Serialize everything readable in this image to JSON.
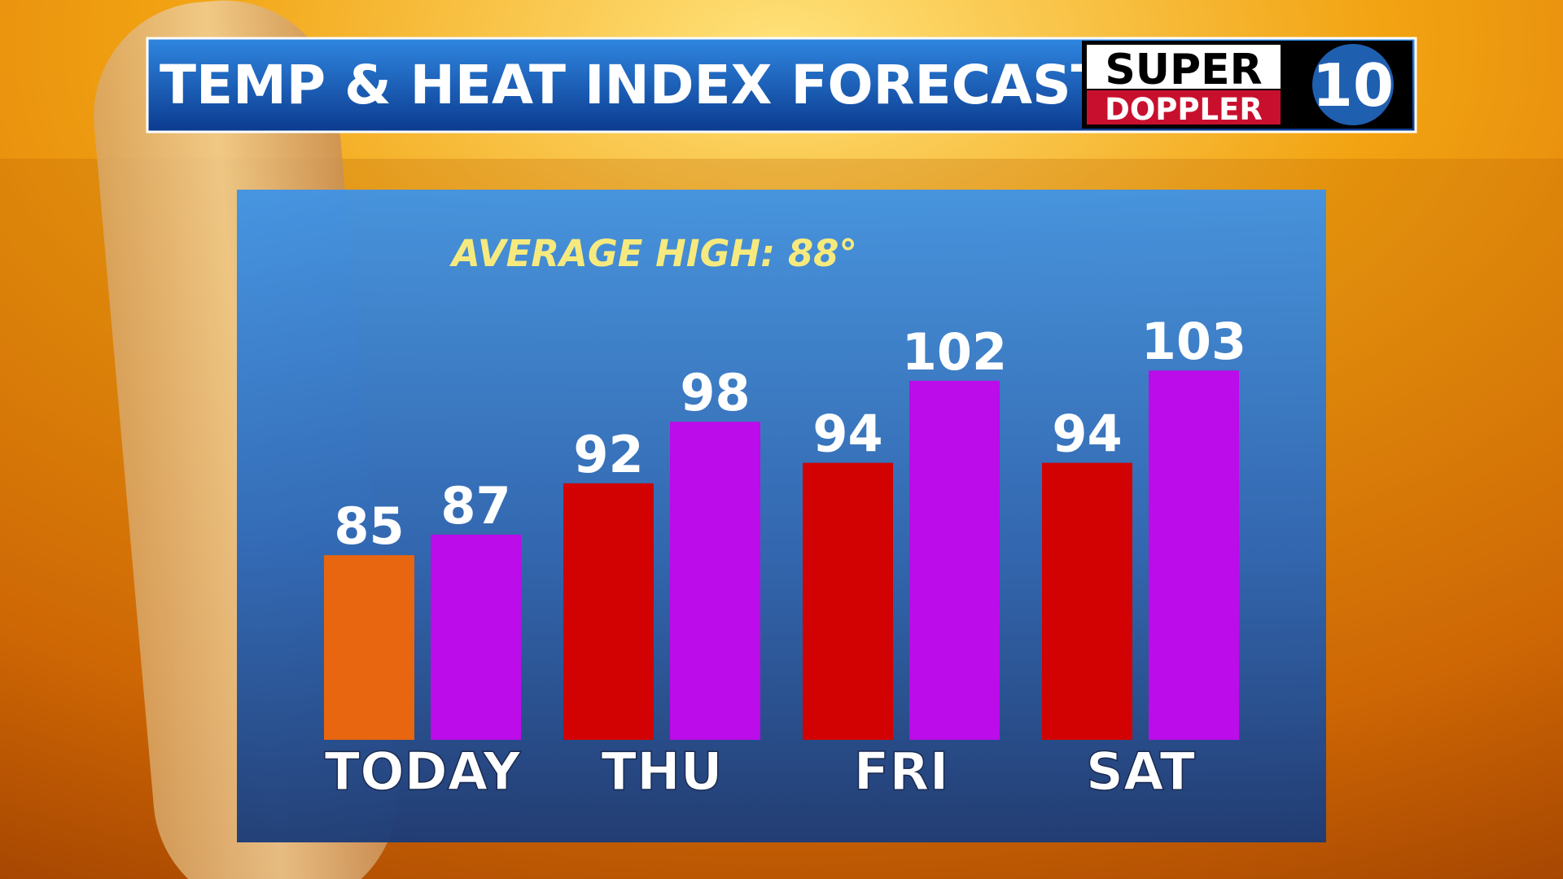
{
  "chart_data": {
    "type": "grouped-bar",
    "title": "TEMP & HEAT INDEX FORECAST",
    "subtitle": "AVERAGE HIGH: 88°",
    "categories": [
      "TODAY",
      "THU",
      "FRI",
      "SAT"
    ],
    "series": [
      {
        "values": [
          85,
          92,
          94,
          94
        ],
        "colors": [
          "#e8660f",
          "#d20202",
          "#d20202",
          "#d20202"
        ]
      },
      {
        "values": [
          87,
          98,
          102,
          103
        ],
        "color": "#bb0ce9"
      }
    ],
    "ylim": [
      67,
      105
    ],
    "grid": false
  },
  "logo": {
    "line1": "SUPER",
    "line2": "DOPPLER",
    "number": "10"
  }
}
